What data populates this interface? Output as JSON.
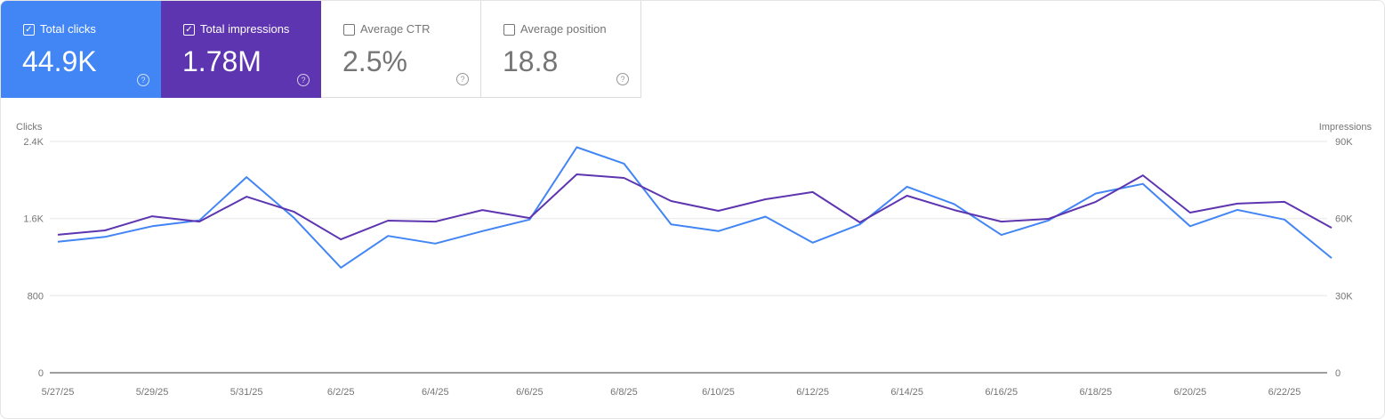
{
  "cards": [
    {
      "label": "Total clicks",
      "value": "44.9K",
      "checked": true,
      "color": "#4285f4"
    },
    {
      "label": "Total impressions",
      "value": "1.78M",
      "checked": true,
      "color": "#5e35b1"
    },
    {
      "label": "Average CTR",
      "value": "2.5%",
      "checked": false
    },
    {
      "label": "Average position",
      "value": "18.8",
      "checked": false
    }
  ],
  "chart_data": {
    "type": "line",
    "ylabel_left": "Clicks",
    "ylabel_right": "Impressions",
    "ylim_left": [
      0,
      2400
    ],
    "ylim_right": [
      0,
      90000
    ],
    "yticks_left": [
      "0",
      "800",
      "1.6K",
      "2.4K"
    ],
    "yticks_right": [
      "0",
      "30K",
      "60K",
      "90K"
    ],
    "grid": true,
    "x": [
      "5/27/25",
      "5/28/25",
      "5/29/25",
      "5/30/25",
      "5/31/25",
      "6/1/25",
      "6/2/25",
      "6/3/25",
      "6/4/25",
      "6/5/25",
      "6/6/25",
      "6/7/25",
      "6/8/25",
      "6/9/25",
      "6/10/25",
      "6/11/25",
      "6/12/25",
      "6/13/25",
      "6/14/25",
      "6/15/25",
      "6/16/25",
      "6/17/25",
      "6/18/25",
      "6/19/25",
      "6/20/25",
      "6/21/25",
      "6/22/25",
      "6/23/25"
    ],
    "xtick_labels": [
      "5/27/25",
      "5/29/25",
      "5/31/25",
      "6/2/25",
      "6/4/25",
      "6/6/25",
      "6/8/25",
      "6/10/25",
      "6/12/25",
      "6/14/25",
      "6/16/25",
      "6/18/25",
      "6/20/25",
      "6/22/25"
    ],
    "series": [
      {
        "name": "Clicks",
        "axis": "left",
        "color": "#4285f4",
        "values": [
          1360,
          1410,
          1520,
          1580,
          2030,
          1610,
          1090,
          1420,
          1340,
          1470,
          1590,
          2340,
          2170,
          1540,
          1470,
          1620,
          1350,
          1540,
          1930,
          1750,
          1430,
          1580,
          1860,
          1960,
          1520,
          1690,
          1590,
          1190
        ]
      },
      {
        "name": "Impressions",
        "axis": "right",
        "color": "#5e35b1",
        "values": [
          53700,
          55400,
          60900,
          58800,
          68500,
          62700,
          51900,
          59200,
          58800,
          63300,
          60200,
          77200,
          75800,
          66800,
          63000,
          67500,
          70300,
          58500,
          68900,
          63300,
          58800,
          59900,
          66500,
          76800,
          62300,
          65800,
          66500,
          56400
        ]
      }
    ]
  }
}
